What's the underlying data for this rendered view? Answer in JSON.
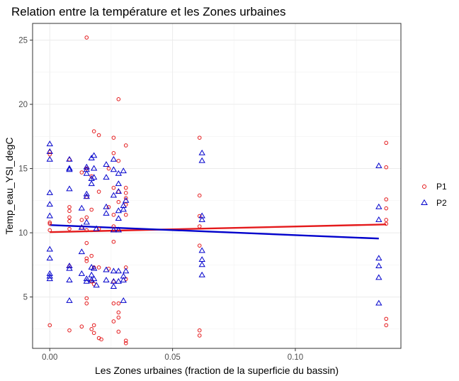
{
  "chart_data": {
    "type": "scatter",
    "title": "Relation entre la température et les Zones urbaines",
    "xlabel": "Les Zones urbaines (fraction de la superficie du bassin)",
    "ylabel": "Temp_eau_YSI_degC",
    "xlim": [
      -0.007,
      0.143
    ],
    "ylim": [
      1.0,
      26.3
    ],
    "x_ticks": [
      0.0,
      0.05,
      0.1
    ],
    "x_tick_labels": [
      "0.00",
      "0.05",
      "0.10"
    ],
    "y_ticks": [
      5,
      10,
      15,
      20,
      25
    ],
    "y_tick_labels": [
      "5",
      "10",
      "15",
      "20",
      "25"
    ],
    "grid": true,
    "legend_position": "right",
    "series": [
      {
        "name": "P1",
        "color": "#e41a1c",
        "marker": "circle",
        "points": [
          [
            0.0,
            16.3
          ],
          [
            0.0,
            10.8
          ],
          [
            0.0,
            10.2
          ],
          [
            0.0,
            2.8
          ],
          [
            0.0,
            16.1
          ],
          [
            0.0,
            10.7
          ],
          [
            0.008,
            15.7
          ],
          [
            0.008,
            12.0
          ],
          [
            0.008,
            11.7
          ],
          [
            0.008,
            11.2
          ],
          [
            0.008,
            10.9
          ],
          [
            0.008,
            10.3
          ],
          [
            0.008,
            7.4
          ],
          [
            0.008,
            2.4
          ],
          [
            0.013,
            14.7
          ],
          [
            0.013,
            11.0
          ],
          [
            0.013,
            10.4
          ],
          [
            0.013,
            2.7
          ],
          [
            0.015,
            25.2
          ],
          [
            0.015,
            15.0
          ],
          [
            0.015,
            12.8
          ],
          [
            0.015,
            11.2
          ],
          [
            0.015,
            10.2
          ],
          [
            0.015,
            9.2
          ],
          [
            0.015,
            8.0
          ],
          [
            0.015,
            7.8
          ],
          [
            0.015,
            4.9
          ],
          [
            0.015,
            4.5
          ],
          [
            0.017,
            14.4
          ],
          [
            0.017,
            11.8
          ],
          [
            0.017,
            8.2
          ],
          [
            0.017,
            6.2
          ],
          [
            0.017,
            2.5
          ],
          [
            0.018,
            17.9
          ],
          [
            0.018,
            7.3
          ],
          [
            0.018,
            6.0
          ],
          [
            0.018,
            2.8
          ],
          [
            0.018,
            2.2
          ],
          [
            0.02,
            17.6
          ],
          [
            0.02,
            13.2
          ],
          [
            0.02,
            10.3
          ],
          [
            0.02,
            7.3
          ],
          [
            0.02,
            1.8
          ],
          [
            0.021,
            1.7
          ],
          [
            0.024,
            15.0
          ],
          [
            0.024,
            12.0
          ],
          [
            0.024,
            7.2
          ],
          [
            0.026,
            17.4
          ],
          [
            0.026,
            16.2
          ],
          [
            0.026,
            13.5
          ],
          [
            0.026,
            11.4
          ],
          [
            0.026,
            10.5
          ],
          [
            0.026,
            9.3
          ],
          [
            0.026,
            6.2
          ],
          [
            0.026,
            4.5
          ],
          [
            0.026,
            3.1
          ],
          [
            0.028,
            20.4
          ],
          [
            0.028,
            15.6
          ],
          [
            0.028,
            13.2
          ],
          [
            0.028,
            12.4
          ],
          [
            0.028,
            3.4
          ],
          [
            0.028,
            2.3
          ],
          [
            0.028,
            4.5
          ],
          [
            0.028,
            3.8
          ],
          [
            0.031,
            16.8
          ],
          [
            0.031,
            13.5
          ],
          [
            0.031,
            13.1
          ],
          [
            0.031,
            12.7
          ],
          [
            0.031,
            12.2
          ],
          [
            0.031,
            11.4
          ],
          [
            0.031,
            7.3
          ],
          [
            0.031,
            6.4
          ],
          [
            0.031,
            1.6
          ],
          [
            0.031,
            1.4
          ],
          [
            0.061,
            17.4
          ],
          [
            0.061,
            12.9
          ],
          [
            0.061,
            11.3
          ],
          [
            0.061,
            10.5
          ],
          [
            0.061,
            9.0
          ],
          [
            0.061,
            2.4
          ],
          [
            0.061,
            2.0
          ],
          [
            0.137,
            17.0
          ],
          [
            0.137,
            15.1
          ],
          [
            0.137,
            12.6
          ],
          [
            0.137,
            11.9
          ],
          [
            0.137,
            11.0
          ],
          [
            0.137,
            10.7
          ],
          [
            0.137,
            3.3
          ],
          [
            0.137,
            2.8
          ]
        ],
        "trend": [
          [
            0.0,
            10.05
          ],
          [
            0.137,
            10.65
          ]
        ]
      },
      {
        "name": "P2",
        "color": "#0000cc",
        "marker": "triangle",
        "points": [
          [
            0.0,
            16.9
          ],
          [
            0.0,
            16.3
          ],
          [
            0.0,
            15.7
          ],
          [
            0.0,
            13.1
          ],
          [
            0.0,
            12.2
          ],
          [
            0.0,
            11.3
          ],
          [
            0.0,
            8.7
          ],
          [
            0.0,
            8.0
          ],
          [
            0.0,
            6.8
          ],
          [
            0.0,
            6.6
          ],
          [
            0.0,
            6.4
          ],
          [
            0.008,
            15.7
          ],
          [
            0.008,
            15.0
          ],
          [
            0.008,
            14.9
          ],
          [
            0.008,
            13.4
          ],
          [
            0.008,
            7.4
          ],
          [
            0.008,
            7.2
          ],
          [
            0.008,
            6.3
          ],
          [
            0.008,
            4.7
          ],
          [
            0.013,
            11.9
          ],
          [
            0.013,
            10.4
          ],
          [
            0.013,
            8.5
          ],
          [
            0.013,
            6.8
          ],
          [
            0.015,
            15.1
          ],
          [
            0.015,
            14.9
          ],
          [
            0.015,
            14.6
          ],
          [
            0.015,
            13.0
          ],
          [
            0.015,
            12.8
          ],
          [
            0.015,
            10.8
          ],
          [
            0.015,
            6.4
          ],
          [
            0.015,
            6.2
          ],
          [
            0.017,
            15.8
          ],
          [
            0.017,
            14.2
          ],
          [
            0.017,
            13.8
          ],
          [
            0.017,
            7.3
          ],
          [
            0.017,
            6.7
          ],
          [
            0.017,
            6.3
          ],
          [
            0.018,
            16.0
          ],
          [
            0.018,
            15.0
          ],
          [
            0.018,
            14.3
          ],
          [
            0.018,
            7.2
          ],
          [
            0.018,
            6.4
          ],
          [
            0.019,
            10.3
          ],
          [
            0.019,
            5.9
          ],
          [
            0.023,
            15.3
          ],
          [
            0.023,
            14.3
          ],
          [
            0.023,
            12.0
          ],
          [
            0.023,
            11.5
          ],
          [
            0.023,
            7.1
          ],
          [
            0.023,
            6.3
          ],
          [
            0.026,
            15.7
          ],
          [
            0.026,
            14.9
          ],
          [
            0.026,
            12.9
          ],
          [
            0.026,
            10.2
          ],
          [
            0.026,
            7.0
          ],
          [
            0.026,
            6.2
          ],
          [
            0.026,
            5.8
          ],
          [
            0.028,
            14.6
          ],
          [
            0.028,
            13.8
          ],
          [
            0.028,
            13.2
          ],
          [
            0.028,
            11.7
          ],
          [
            0.028,
            11.1
          ],
          [
            0.028,
            10.2
          ],
          [
            0.028,
            7.0
          ],
          [
            0.028,
            6.2
          ],
          [
            0.03,
            14.8
          ],
          [
            0.03,
            12.1
          ],
          [
            0.03,
            11.8
          ],
          [
            0.03,
            6.6
          ],
          [
            0.03,
            6.3
          ],
          [
            0.03,
            4.7
          ],
          [
            0.031,
            12.5
          ],
          [
            0.031,
            7.0
          ],
          [
            0.062,
            16.2
          ],
          [
            0.062,
            15.6
          ],
          [
            0.062,
            11.3
          ],
          [
            0.062,
            11.0
          ],
          [
            0.062,
            8.6
          ],
          [
            0.062,
            7.9
          ],
          [
            0.062,
            7.5
          ],
          [
            0.062,
            6.7
          ],
          [
            0.134,
            15.2
          ],
          [
            0.134,
            12.0
          ],
          [
            0.134,
            11.0
          ],
          [
            0.134,
            8.0
          ],
          [
            0.134,
            7.4
          ],
          [
            0.134,
            6.5
          ],
          [
            0.134,
            4.5
          ]
        ],
        "trend": [
          [
            0.0,
            10.6
          ],
          [
            0.134,
            9.55
          ]
        ]
      }
    ]
  }
}
